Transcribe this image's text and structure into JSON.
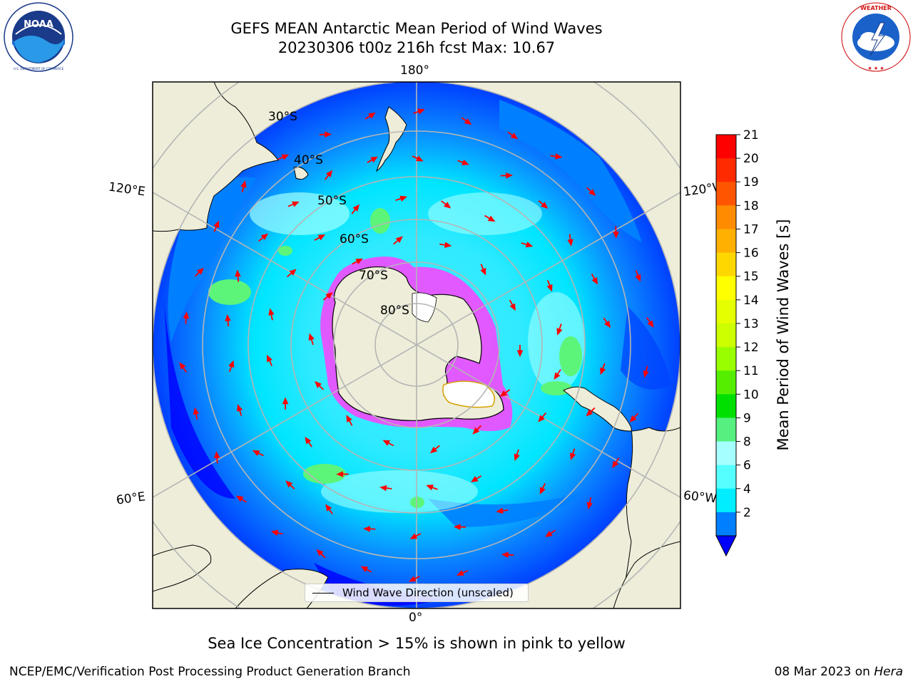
{
  "header": {
    "title_line1": "GEFS MEAN Antarctic Mean Period of Wind Waves",
    "title_line2": "20230306 t00z 216h fcst   Max: 10.67"
  },
  "logos": {
    "left": {
      "icon": "noaa-logo-icon",
      "text": "NOAA",
      "ring_text": "NATIONAL OCEANIC AND ATMOSPHERIC ADMINISTRATION · U.S. DEPARTMENT OF COMMERCE"
    },
    "right": {
      "icon": "nws-logo-icon",
      "ring_text": "NATIONAL WEATHER SERVICE"
    }
  },
  "map": {
    "projection": "south-polar-stereographic",
    "longitude_labels": {
      "top": "180°",
      "bottom": "0°",
      "left_upper": "120°E",
      "left_lower": "60°E",
      "right_upper": "120°W",
      "right_lower": "60°W"
    },
    "latitude_labels": [
      "30°S",
      "40°S",
      "50°S",
      "60°S",
      "70°S",
      "80°S"
    ],
    "colors": {
      "land": "#eeedd9",
      "ocean_low": "#0000ff",
      "ocean_2_4": "#0080ff",
      "ocean_4_6": "#00e5ff",
      "ocean_6_8": "#40f0ff",
      "ocean_8_9": "#a0ffff",
      "ocean_9_10": "#5cf57a",
      "sea_ice": "#ff40ff",
      "arrows": "#ff0000",
      "graticule": "#b5b5b5"
    },
    "legend_label": "Wind Wave Direction (unscaled)"
  },
  "colorbar": {
    "label": "Mean Period of Wind Waves [s]",
    "ticks": [
      "21",
      "20",
      "19",
      "18",
      "17",
      "16",
      "15",
      "14",
      "13",
      "12",
      "11",
      "10",
      "9",
      "8",
      "6",
      "4",
      "2"
    ],
    "bands_top_to_bottom": [
      "#ff0000",
      "#ff2a00",
      "#ff5500",
      "#ff8c00",
      "#ffb000",
      "#ffd700",
      "#ffff00",
      "#e6ff00",
      "#ccff00",
      "#99ff00",
      "#55ee00",
      "#00e000",
      "#55f080",
      "#a6ffff",
      "#55ffff",
      "#00eeff",
      "#0080ff"
    ],
    "extend_color": "#0000ff"
  },
  "caption": "Sea Ice Concentration > 15% is shown in pink to yellow",
  "footer": {
    "left": "NCEP/EMC/Verification Post Processing Product Generation Branch",
    "date": "08 Mar 2023 on ",
    "system": "Hera"
  }
}
